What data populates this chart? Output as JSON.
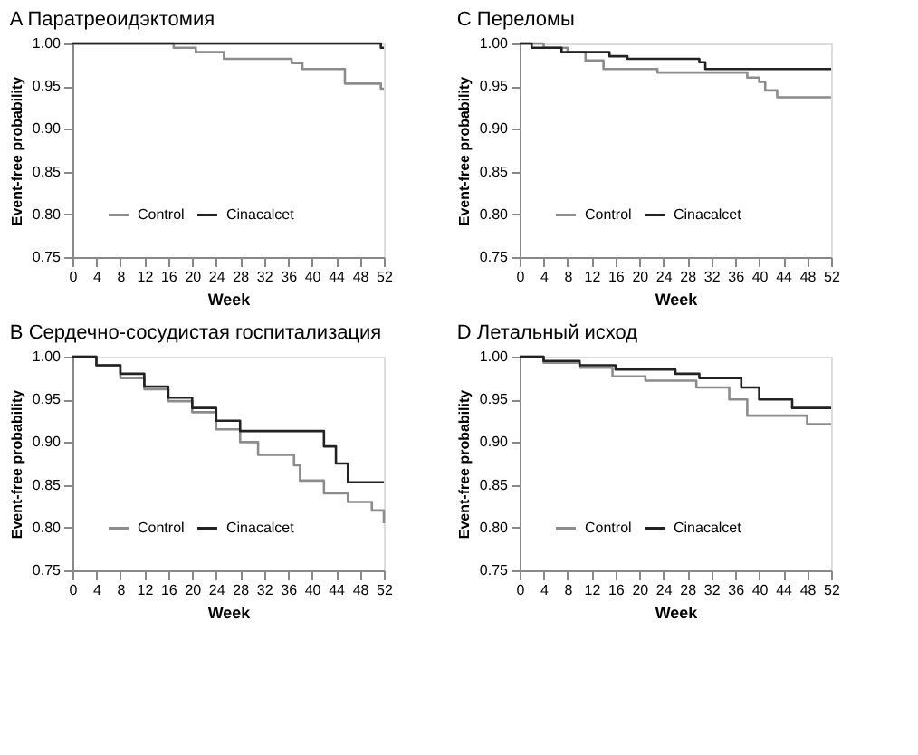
{
  "chart_data": [
    {
      "type": "step",
      "title": "A Паратреоидэктомия",
      "xlabel": "Week",
      "ylabel": "Event-free probability",
      "legend": "bottom left",
      "grid": false,
      "xlim": [
        0,
        52
      ],
      "xticks": [
        0,
        4,
        8,
        12,
        16,
        20,
        24,
        28,
        32,
        36,
        40,
        44,
        48,
        52
      ],
      "ylim": [
        0.75,
        1
      ],
      "yticks": [
        {
          "value": 0.75,
          "label": "0.75"
        },
        {
          "value": 0.8,
          "label": "0.80"
        },
        {
          "value": 0.85,
          "label": "0.85"
        },
        {
          "value": 0.9,
          "label": "0.90"
        },
        {
          "value": 0.95,
          "label": "0.95"
        },
        {
          "value": 1,
          "label": "1.00"
        }
      ],
      "series": [
        {
          "name": "Control",
          "color": "#8c8c8c",
          "x": [
            0,
            16.9,
            20.6,
            25.3,
            36.6,
            38.4,
            45.5,
            51.5,
            52
          ],
          "values": [
            1,
            0.995,
            0.99,
            0.982,
            0.977,
            0.97,
            0.953,
            0.947,
            0.947
          ]
        },
        {
          "name": "Cinacalcet",
          "color": "#222222",
          "x": [
            0,
            8,
            16,
            24,
            32,
            40,
            48,
            51.5,
            52
          ],
          "values": [
            1,
            1,
            1,
            1,
            1,
            1,
            1,
            0.995,
            0.995
          ]
        }
      ]
    },
    {
      "type": "step",
      "title": "C Переломы",
      "xlabel": "Week",
      "ylabel": "Event-free probability",
      "legend": "bottom left",
      "grid": false,
      "xlim": [
        0,
        52
      ],
      "xticks": [
        0,
        4,
        8,
        12,
        16,
        20,
        24,
        28,
        32,
        36,
        40,
        44,
        48,
        52
      ],
      "ylim": [
        0.75,
        1
      ],
      "yticks": [
        {
          "value": 0.75,
          "label": "0.75"
        },
        {
          "value": 0.8,
          "label": "0.80"
        },
        {
          "value": 0.85,
          "label": "0.85"
        },
        {
          "value": 0.9,
          "label": "0.90"
        },
        {
          "value": 0.95,
          "label": "0.95"
        },
        {
          "value": 1,
          "label": "1.00"
        }
      ],
      "series": [
        {
          "name": "Control",
          "color": "#8c8c8c",
          "x": [
            0,
            4,
            8,
            11,
            14,
            23,
            38,
            40,
            41,
            43,
            52
          ],
          "values": [
            1,
            0.995,
            0.99,
            0.98,
            0.97,
            0.966,
            0.96,
            0.955,
            0.945,
            0.937,
            0.937
          ]
        },
        {
          "name": "Cinacalcet",
          "color": "#222222",
          "x": [
            0,
            2,
            7,
            15,
            18,
            30,
            31,
            52
          ],
          "values": [
            1,
            0.995,
            0.99,
            0.985,
            0.982,
            0.978,
            0.97,
            0.97
          ]
        }
      ]
    },
    {
      "type": "step",
      "title": "B Сердечно-сосудистая госпитализация",
      "xlabel": "Week",
      "ylabel": "Event-free probability",
      "legend": "bottom left",
      "grid": false,
      "xlim": [
        0,
        52
      ],
      "xticks": [
        0,
        4,
        8,
        12,
        16,
        20,
        24,
        28,
        32,
        36,
        40,
        44,
        48,
        52
      ],
      "ylim": [
        0.75,
        1
      ],
      "yticks": [
        {
          "value": 0.75,
          "label": "0.75"
        },
        {
          "value": 0.8,
          "label": "0.80"
        },
        {
          "value": 0.85,
          "label": "0.85"
        },
        {
          "value": 0.9,
          "label": "0.90"
        },
        {
          "value": 0.95,
          "label": "0.95"
        },
        {
          "value": 1,
          "label": "1.00"
        }
      ],
      "series": [
        {
          "name": "Control",
          "color": "#8c8c8c",
          "x": [
            0,
            4,
            8,
            12,
            16,
            20,
            24,
            28,
            31,
            37,
            38,
            42,
            46,
            50,
            52
          ],
          "values": [
            1,
            0.99,
            0.975,
            0.962,
            0.948,
            0.935,
            0.915,
            0.9,
            0.885,
            0.873,
            0.855,
            0.84,
            0.83,
            0.82,
            0.805
          ]
        },
        {
          "name": "Cinacalcet",
          "color": "#222222",
          "x": [
            0,
            4,
            8,
            12,
            16,
            20,
            24,
            28,
            40,
            42,
            44,
            46,
            52
          ],
          "values": [
            1,
            0.99,
            0.98,
            0.965,
            0.952,
            0.94,
            0.925,
            0.913,
            0.913,
            0.895,
            0.875,
            0.853,
            0.853
          ]
        }
      ]
    },
    {
      "type": "step",
      "title": "D Летальный исход",
      "xlabel": "Week",
      "ylabel": "Event-free probability",
      "legend": "bottom left",
      "grid": false,
      "xlim": [
        0,
        52
      ],
      "xticks": [
        0,
        4,
        8,
        12,
        16,
        20,
        24,
        28,
        32,
        36,
        40,
        44,
        48,
        52
      ],
      "ylim": [
        0.75,
        1
      ],
      "yticks": [
        {
          "value": 0.75,
          "label": "0.75"
        },
        {
          "value": 0.8,
          "label": "0.80"
        },
        {
          "value": 0.85,
          "label": "0.85"
        },
        {
          "value": 0.9,
          "label": "0.90"
        },
        {
          "value": 0.95,
          "label": "0.95"
        },
        {
          "value": 1,
          "label": "1.00"
        }
      ],
      "series": [
        {
          "name": "Control",
          "color": "#8c8c8c",
          "x": [
            0,
            4,
            10,
            15.5,
            21,
            29.5,
            35,
            38,
            48,
            52
          ],
          "values": [
            1,
            0.993,
            0.987,
            0.977,
            0.972,
            0.964,
            0.95,
            0.931,
            0.921,
            0.921
          ]
        },
        {
          "name": "Cinacalcet",
          "color": "#222222",
          "x": [
            0,
            4,
            10,
            16,
            26,
            30,
            37,
            40,
            45.5,
            52
          ],
          "values": [
            1,
            0.995,
            0.99,
            0.985,
            0.98,
            0.975,
            0.964,
            0.95,
            0.94,
            0.94
          ]
        }
      ]
    }
  ]
}
